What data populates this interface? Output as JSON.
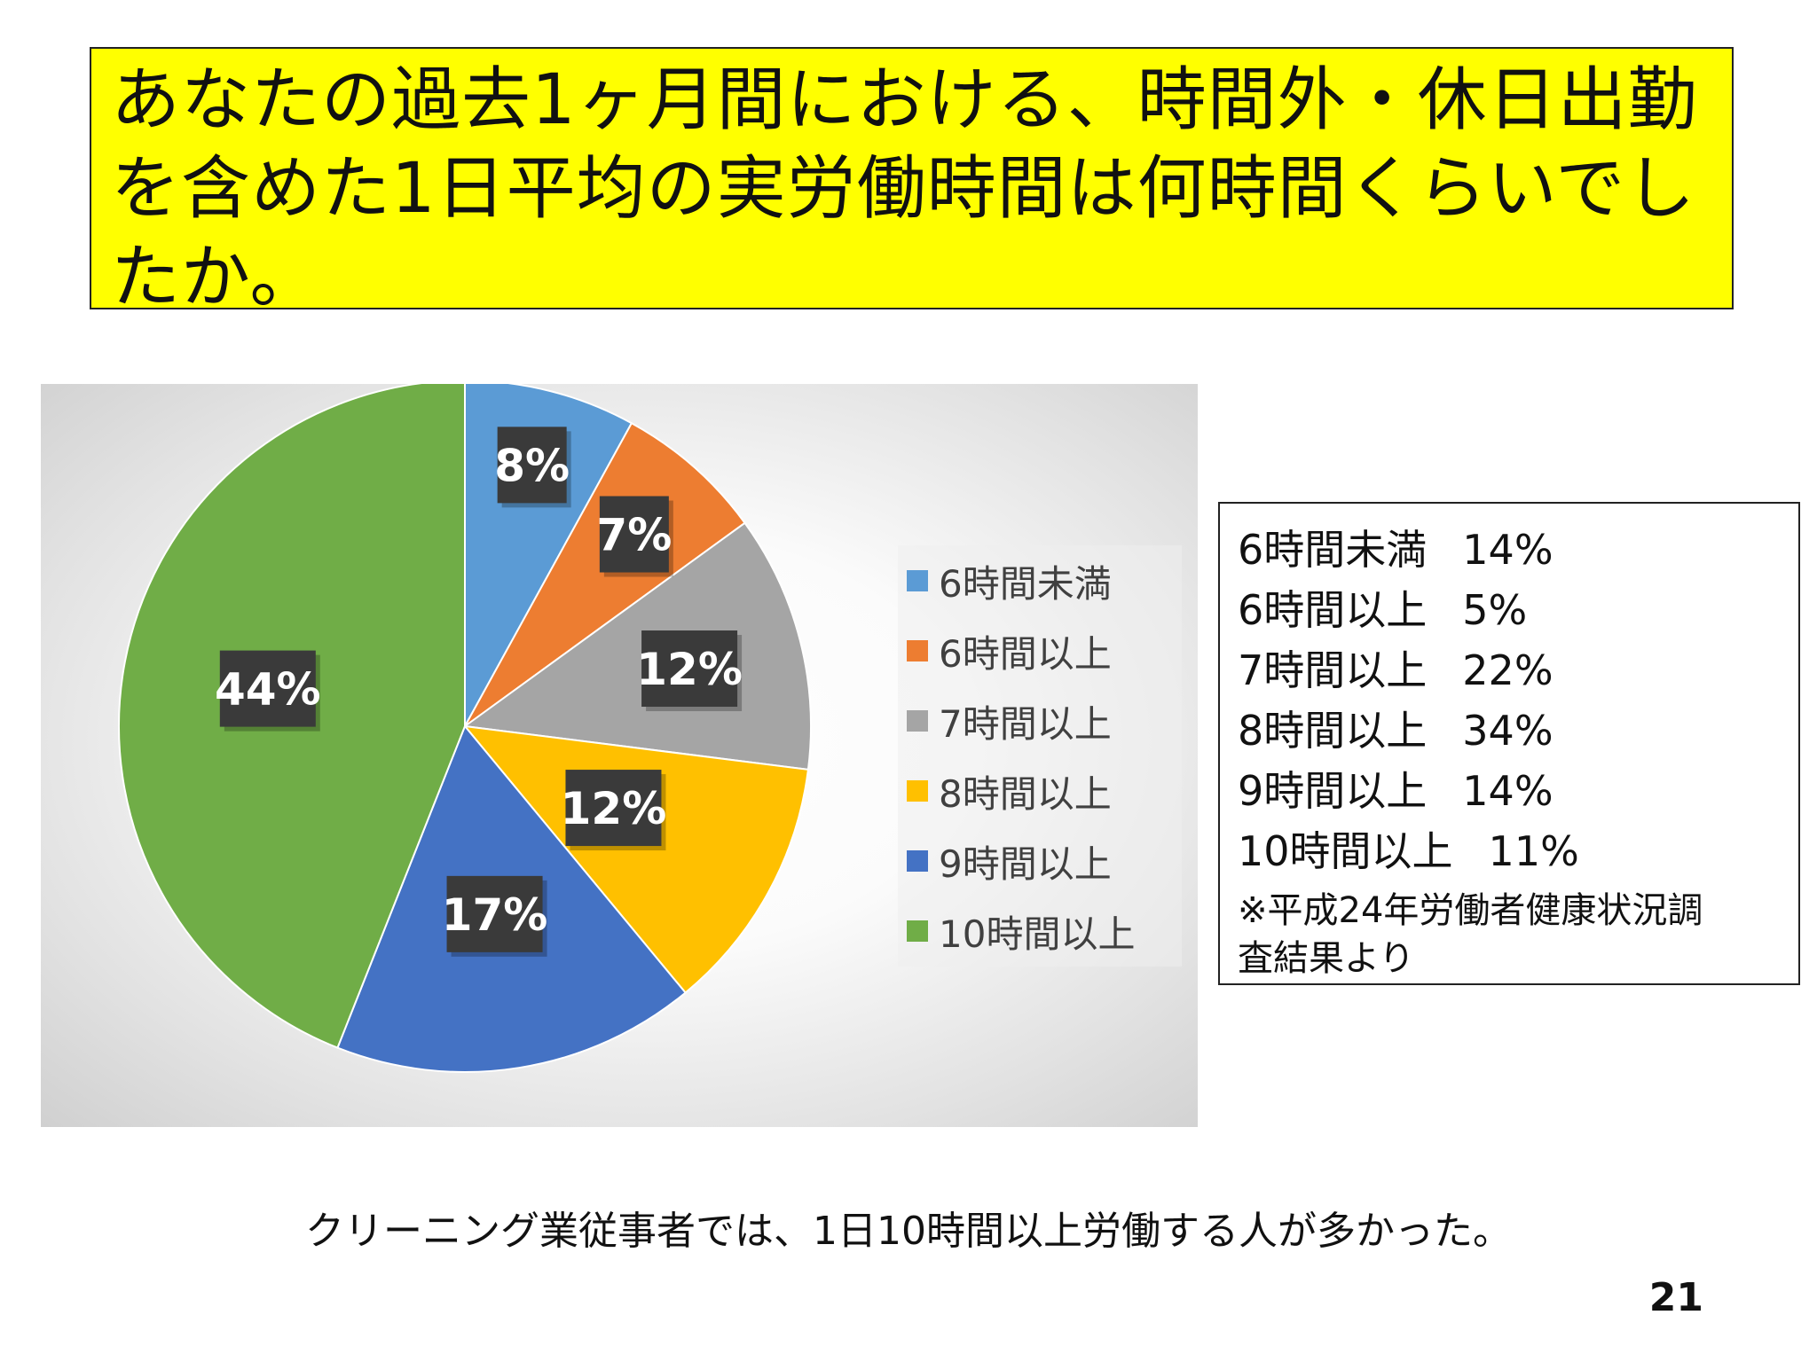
{
  "title": "あなたの過去1ヶ月間における、時間外・休日出勤を含めた1日平均の実労働時間は何時間くらいでしたか。",
  "chart_data": {
    "type": "pie",
    "categories": [
      "6時間未満",
      "6時間以上",
      "7時間以上",
      "8時間以上",
      "9時間以上",
      "10時間以上"
    ],
    "values": [
      8,
      7,
      12,
      12,
      17,
      44
    ],
    "data_labels": [
      "8%",
      "7%",
      "12%",
      "12%",
      "17%",
      "44%"
    ],
    "colors": [
      "#5b9bd5",
      "#ed7d31",
      "#a5a5a5",
      "#ffc000",
      "#4472c4",
      "#70ad47"
    ],
    "legend_position": "right",
    "start_angle_deg": 0,
    "direction": "clockwise"
  },
  "reference": {
    "rows": [
      {
        "label": "6時間未満",
        "value": "14%"
      },
      {
        "label": "6時間以上",
        "value": "5%"
      },
      {
        "label": "7時間以上",
        "value": "22%"
      },
      {
        "label": "8時間以上",
        "value": "34%"
      },
      {
        "label": "9時間以上",
        "value": "14%"
      },
      {
        "label": "10時間以上",
        "value": "11%"
      }
    ],
    "source_line1": "※平成24年労働者健康状況調",
    "source_line2": "査結果より"
  },
  "conclusion": "クリーニング業従事者では、1日10時間以上労働する人が多かった。",
  "page_number": "21"
}
